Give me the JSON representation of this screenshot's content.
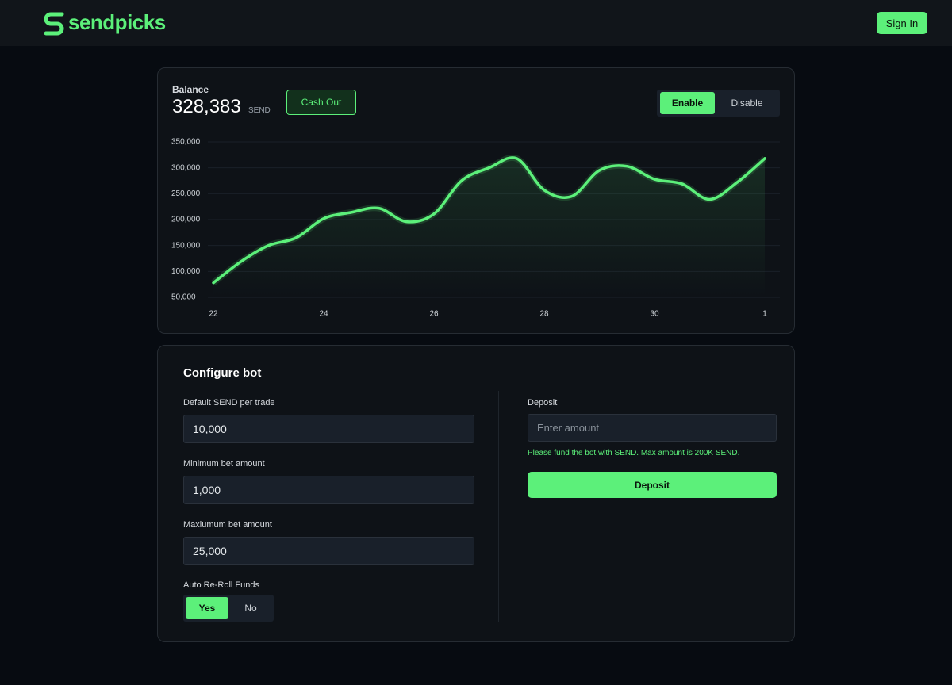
{
  "header": {
    "logo": "sendpicks",
    "sign_in": "Sign In"
  },
  "balance": {
    "label": "Balance",
    "amount": "328,383",
    "unit": "SEND",
    "cash_out": "Cash Out",
    "enable": "Enable",
    "disable": "Disable"
  },
  "chart_data": {
    "type": "line",
    "color": "#5cf07a",
    "categories": [
      "22",
      null,
      null,
      null,
      "24",
      null,
      null,
      null,
      "26",
      null,
      null,
      null,
      "28",
      null,
      null,
      null,
      "30",
      null,
      null,
      null,
      "1"
    ],
    "values": [
      78000,
      119000,
      150000,
      165000,
      202000,
      214000,
      222000,
      196000,
      211000,
      275000,
      300000,
      318000,
      257000,
      245000,
      295000,
      303000,
      278000,
      269000,
      239000,
      272000,
      318000
    ],
    "ylim": [
      50000,
      350000
    ],
    "yticks": [
      {
        "value": 50000,
        "label": "50,000"
      },
      {
        "value": 100000,
        "label": "100,000"
      },
      {
        "value": 150000,
        "label": "150,000"
      },
      {
        "value": 200000,
        "label": "200,000"
      },
      {
        "value": 250000,
        "label": "250,000"
      },
      {
        "value": 300000,
        "label": "300,000"
      },
      {
        "value": 350000,
        "label": "350,000"
      }
    ],
    "grid": true
  },
  "config": {
    "title": "Configure bot",
    "default_label": "Default SEND per trade",
    "default_value": "10,000",
    "min_label": "Minimum bet amount",
    "min_value": "1,000",
    "max_label": "Maxiumum bet amount",
    "max_value": "25,000",
    "reroll_label": "Auto Re-Roll Funds",
    "yes": "Yes",
    "no": "No",
    "deposit_label": "Deposit",
    "deposit_placeholder": "Enter amount",
    "deposit_note": "Please fund the bot with SEND. Max amount is 200K SEND.",
    "deposit_button": "Deposit"
  }
}
